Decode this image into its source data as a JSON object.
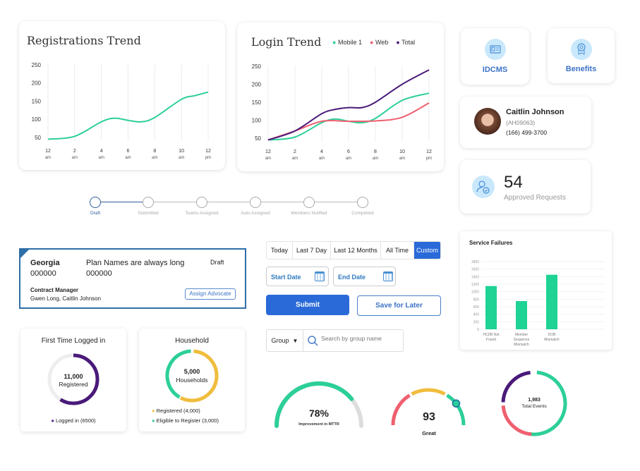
{
  "registrations": {
    "title": "Registrations Trend",
    "x_ticks": [
      [
        "12",
        "am"
      ],
      [
        "2",
        "am"
      ],
      [
        "4",
        "am"
      ],
      [
        "6",
        "am"
      ],
      [
        "8",
        "am"
      ],
      [
        "10",
        "am"
      ],
      [
        "12",
        "pm"
      ]
    ],
    "y_ticks": [
      50,
      100,
      150,
      200,
      250
    ]
  },
  "login": {
    "title": "Login Trend",
    "legend": [
      "Mobile 1",
      "Web",
      "Total"
    ],
    "x_ticks": [
      [
        "12",
        "am"
      ],
      [
        "2",
        "am"
      ],
      [
        "4",
        "am"
      ],
      [
        "6",
        "am"
      ],
      [
        "8",
        "am"
      ],
      [
        "10",
        "am"
      ],
      [
        "12",
        "pm"
      ]
    ],
    "y_ticks": [
      50,
      100,
      150,
      200,
      250
    ]
  },
  "chart_data": [
    {
      "type": "line",
      "title": "Registrations Trend",
      "xlabel": "",
      "ylabel": "",
      "x_unit": "hour",
      "ylim": [
        40,
        250
      ],
      "grid": "vertical",
      "series": [
        {
          "color": "#2ccf98",
          "points": [
            [
              0,
              45
            ],
            [
              2,
              53
            ],
            [
              4,
              93
            ],
            [
              5,
              103
            ],
            [
              6,
              97
            ],
            [
              7,
              93
            ],
            [
              8,
              105
            ],
            [
              10,
              155
            ],
            [
              11,
              165
            ],
            [
              12,
              175
            ]
          ]
        }
      ]
    },
    {
      "type": "line",
      "title": "Login Trend",
      "ylim": [
        40,
        250
      ],
      "legend": "top-right",
      "grid": "vertical",
      "series": [
        {
          "name": "Mobile 1",
          "color": "#2ccf98",
          "points": [
            [
              0,
              45
            ],
            [
              2,
              53
            ],
            [
              4,
              93
            ],
            [
              5,
              103
            ],
            [
              6,
              97
            ],
            [
              7,
              93
            ],
            [
              8,
              105
            ],
            [
              10,
              155
            ],
            [
              12,
              175
            ]
          ]
        },
        {
          "name": "Web",
          "color": "#ef6070",
          "points": [
            [
              0,
              45
            ],
            [
              2,
              70
            ],
            [
              4,
              97
            ],
            [
              6,
              97
            ],
            [
              8,
              98
            ],
            [
              10,
              108
            ],
            [
              12,
              148
            ]
          ]
        },
        {
          "name": "Total",
          "color": "#4a1a7a",
          "points": [
            [
              0,
              45
            ],
            [
              2,
              70
            ],
            [
              4,
              118
            ],
            [
              5,
              130
            ],
            [
              6,
              135
            ],
            [
              7,
              135
            ],
            [
              8,
              150
            ],
            [
              10,
              200
            ],
            [
              12,
              240
            ]
          ]
        }
      ]
    },
    {
      "type": "bar",
      "title": "Service Failures",
      "categories": [
        [
          "HCDB Not",
          "Found"
        ],
        [
          "Member",
          "Sequence",
          "Mismatch"
        ],
        [
          "DOB",
          "Mismatch"
        ]
      ],
      "values": [
        1150,
        750,
        1450
      ],
      "ylim": [
        0,
        1800
      ],
      "y_ticks": [
        0,
        200,
        400,
        600,
        800,
        1000,
        1200,
        1400,
        1600,
        1800
      ],
      "color": "#1ed394"
    }
  ],
  "tiles": [
    {
      "label": "IDCMS",
      "icon": "id-card-icon"
    },
    {
      "label": "Benefits",
      "icon": "award-icon"
    }
  ],
  "person": {
    "name": "Caitlin Johnson",
    "id": "(AH09063)",
    "phone": "(166) 499-3700"
  },
  "approved": {
    "count": "54",
    "label": "Approved Requests"
  },
  "stepper": {
    "steps": [
      "Draft",
      "Submitted",
      "Teams Assigned",
      "Auto Assigned",
      "Members Notified",
      "Completed"
    ],
    "active": 0
  },
  "plan": {
    "state": "Georgia",
    "state_code": "000000",
    "plan_name": "Plan Names are always long",
    "plan_code": "000000",
    "status": "Draft",
    "manager_label": "Contract Manager",
    "managers": "Gwen Long, Caitlin Johnson",
    "assign": "Assign Advocate"
  },
  "date_tabs": {
    "items": [
      "Today",
      "Last 7 Day",
      "Last 12 Months",
      "All Time",
      "Custom"
    ],
    "selected": "Custom"
  },
  "dates": {
    "start": "Start Date",
    "end": "End Date"
  },
  "buttons": {
    "submit": "Submit",
    "save": "Save for Later"
  },
  "search": {
    "group": "Group",
    "placeholder": "Search by group name"
  },
  "first_login": {
    "title": "First Time Logged in",
    "value": "11,000",
    "sub": "Registered",
    "legend": "Logged in (6500)",
    "fraction": 0.59,
    "color": "#4a1a7a"
  },
  "household": {
    "title": "Household",
    "value": "5,000",
    "sub": "Households",
    "legend": [
      "Registered (4,000)",
      "Eligible to Register (3,000)"
    ],
    "colors": [
      "#f0bd3c",
      "#2ccf98"
    ]
  },
  "mttr": {
    "value": "78%",
    "label": "Improvement in MTTR",
    "fraction": 0.78
  },
  "score": {
    "value": "93",
    "label": "Great"
  },
  "events": {
    "value": "1,983",
    "label": "Total Events"
  },
  "colors": {
    "accent": "#2a6ad8",
    "green": "#2ccf98",
    "red": "#ef6070",
    "purple": "#4a1a7a",
    "yellow": "#f0bd3c"
  }
}
